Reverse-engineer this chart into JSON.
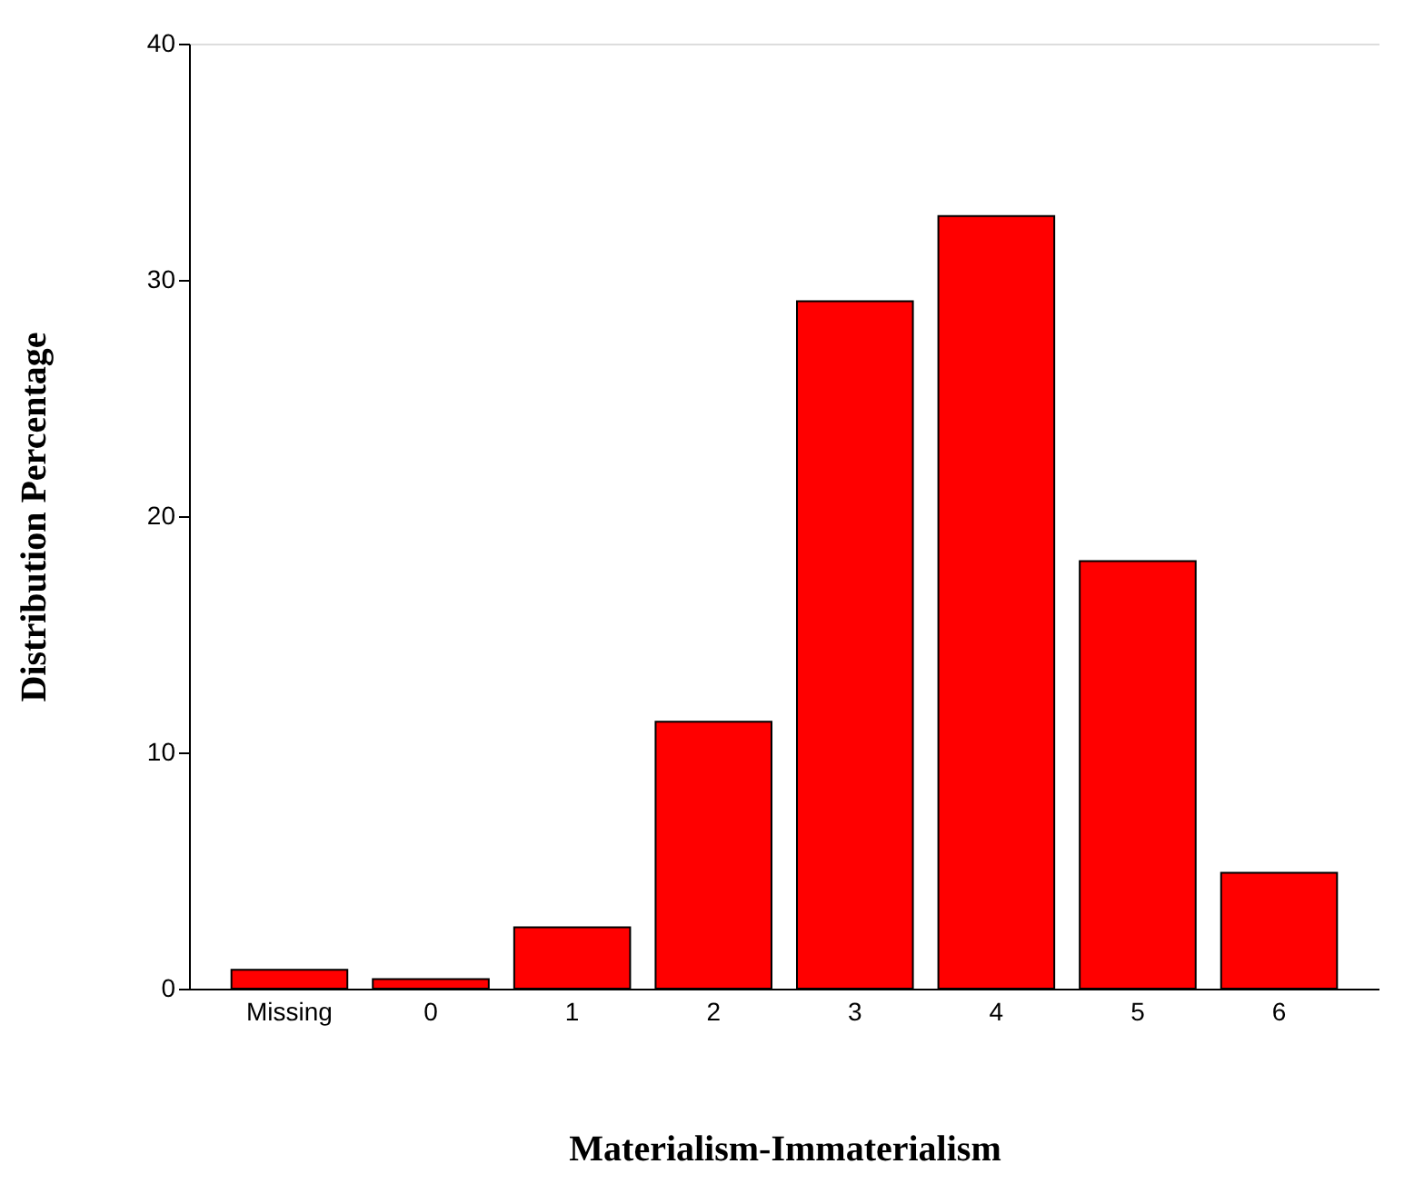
{
  "chart_data": {
    "type": "bar",
    "xlabel": "Materialism-Immaterialism",
    "ylabel": "Distribution Percentage",
    "categories": [
      "Missing",
      "0",
      "1",
      "2",
      "3",
      "4",
      "5",
      "6"
    ],
    "values": [
      0.8,
      0.4,
      2.6,
      11.3,
      29.1,
      32.7,
      18.1,
      4.9
    ],
    "color": "#ff0000",
    "ylim": [
      0,
      40
    ],
    "yticks": [
      0,
      10,
      20,
      30,
      40
    ],
    "grid": false
  }
}
